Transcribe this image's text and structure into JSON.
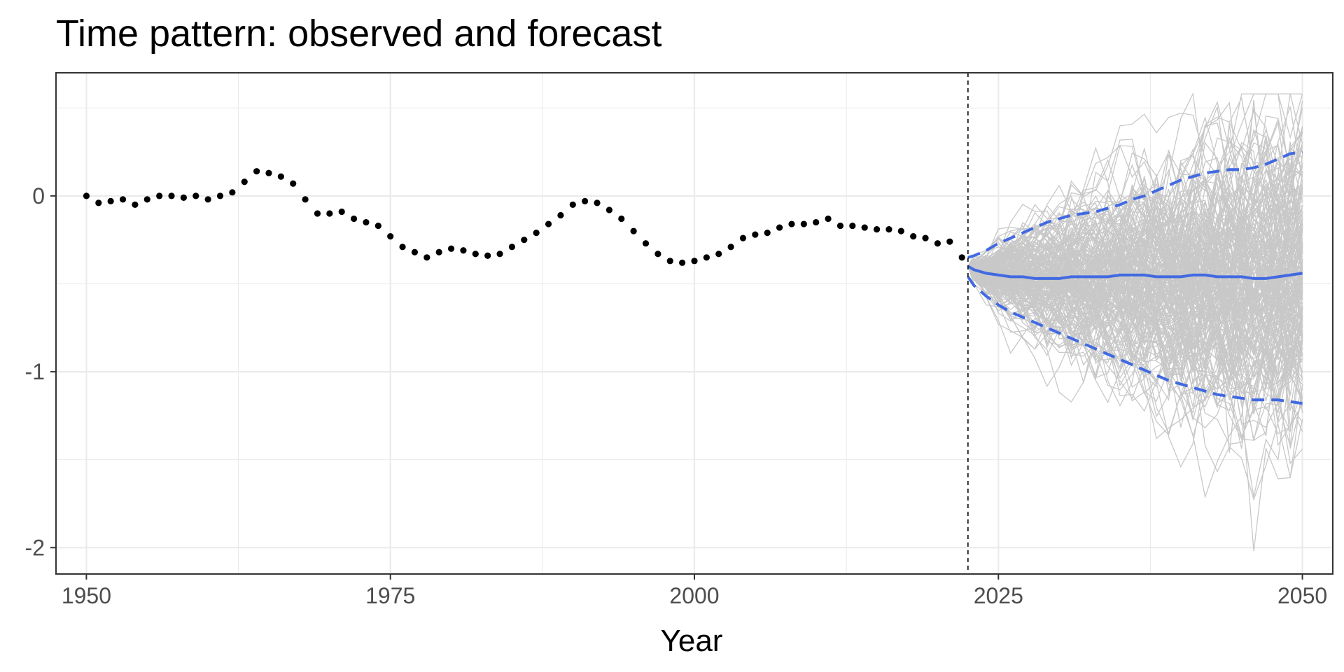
{
  "chart_data": {
    "type": "line",
    "title": "Time pattern: observed and forecast",
    "xlabel": "Year",
    "ylabel": "",
    "xlim": [
      1947.5,
      2052.5
    ],
    "ylim": [
      -2.15,
      0.7
    ],
    "x_ticks": [
      1950,
      1975,
      2000,
      2025,
      2050
    ],
    "x_tick_labels": [
      "1950",
      "1975",
      "2000",
      "2025",
      "2050"
    ],
    "y_ticks": [
      0,
      -1,
      -2
    ],
    "y_tick_labels": [
      "0",
      "-1",
      "-2"
    ],
    "grid": true,
    "legend": "none",
    "forecast_start_year": 2022.5,
    "colors": {
      "observed": "#000000",
      "median": "#4169E1",
      "interval": "#4169E1",
      "simulations": "#c8c8c8",
      "grid": "#ebebeb",
      "panel_border": "#333333",
      "vline": "#000000"
    },
    "observed": {
      "x": [
        1950,
        1951,
        1952,
        1953,
        1954,
        1955,
        1956,
        1957,
        1958,
        1959,
        1960,
        1961,
        1962,
        1963,
        1964,
        1965,
        1966,
        1967,
        1968,
        1969,
        1970,
        1971,
        1972,
        1973,
        1974,
        1975,
        1976,
        1977,
        1978,
        1979,
        1980,
        1981,
        1982,
        1983,
        1984,
        1985,
        1986,
        1987,
        1988,
        1989,
        1990,
        1991,
        1992,
        1993,
        1994,
        1995,
        1996,
        1997,
        1998,
        1999,
        2000,
        2001,
        2002,
        2003,
        2004,
        2005,
        2006,
        2007,
        2008,
        2009,
        2010,
        2011,
        2012,
        2013,
        2014,
        2015,
        2016,
        2017,
        2018,
        2019,
        2020,
        2021,
        2022
      ],
      "y": [
        0.0,
        -0.04,
        -0.03,
        -0.02,
        -0.05,
        -0.02,
        0.0,
        0.0,
        -0.01,
        0.0,
        -0.02,
        0.0,
        0.02,
        0.08,
        0.14,
        0.13,
        0.11,
        0.07,
        -0.02,
        -0.1,
        -0.1,
        -0.09,
        -0.13,
        -0.15,
        -0.17,
        -0.23,
        -0.29,
        -0.32,
        -0.35,
        -0.32,
        -0.3,
        -0.31,
        -0.33,
        -0.34,
        -0.33,
        -0.29,
        -0.25,
        -0.21,
        -0.16,
        -0.11,
        -0.05,
        -0.03,
        -0.04,
        -0.08,
        -0.13,
        -0.2,
        -0.27,
        -0.33,
        -0.37,
        -0.38,
        -0.37,
        -0.35,
        -0.33,
        -0.29,
        -0.24,
        -0.22,
        -0.21,
        -0.18,
        -0.16,
        -0.16,
        -0.15,
        -0.13,
        -0.17,
        -0.17,
        -0.18,
        -0.19,
        -0.19,
        -0.2,
        -0.23,
        -0.24,
        -0.27,
        -0.26,
        -0.35
      ]
    },
    "forecast": {
      "x": [
        2022.5,
        2023,
        2024,
        2025,
        2026,
        2027,
        2028,
        2029,
        2030,
        2031,
        2032,
        2033,
        2034,
        2035,
        2036,
        2037,
        2038,
        2039,
        2040,
        2041,
        2042,
        2043,
        2044,
        2045,
        2046,
        2047,
        2048,
        2049,
        2050
      ],
      "median": [
        -0.4,
        -0.42,
        -0.44,
        -0.45,
        -0.46,
        -0.46,
        -0.47,
        -0.47,
        -0.47,
        -0.46,
        -0.46,
        -0.46,
        -0.46,
        -0.45,
        -0.45,
        -0.45,
        -0.46,
        -0.46,
        -0.46,
        -0.45,
        -0.45,
        -0.46,
        -0.46,
        -0.46,
        -0.47,
        -0.47,
        -0.46,
        -0.45,
        -0.44
      ],
      "upper": [
        -0.35,
        -0.34,
        -0.31,
        -0.27,
        -0.24,
        -0.21,
        -0.18,
        -0.15,
        -0.13,
        -0.11,
        -0.1,
        -0.09,
        -0.07,
        -0.05,
        -0.02,
        0.0,
        0.03,
        0.06,
        0.09,
        0.11,
        0.13,
        0.14,
        0.15,
        0.15,
        0.16,
        0.18,
        0.21,
        0.24,
        0.25
      ],
      "lower": [
        -0.46,
        -0.51,
        -0.57,
        -0.62,
        -0.66,
        -0.69,
        -0.72,
        -0.75,
        -0.78,
        -0.81,
        -0.84,
        -0.87,
        -0.9,
        -0.93,
        -0.96,
        -0.99,
        -1.02,
        -1.05,
        -1.07,
        -1.09,
        -1.11,
        -1.13,
        -1.14,
        -1.15,
        -1.16,
        -1.16,
        -1.16,
        -1.17,
        -1.18
      ]
    }
  }
}
